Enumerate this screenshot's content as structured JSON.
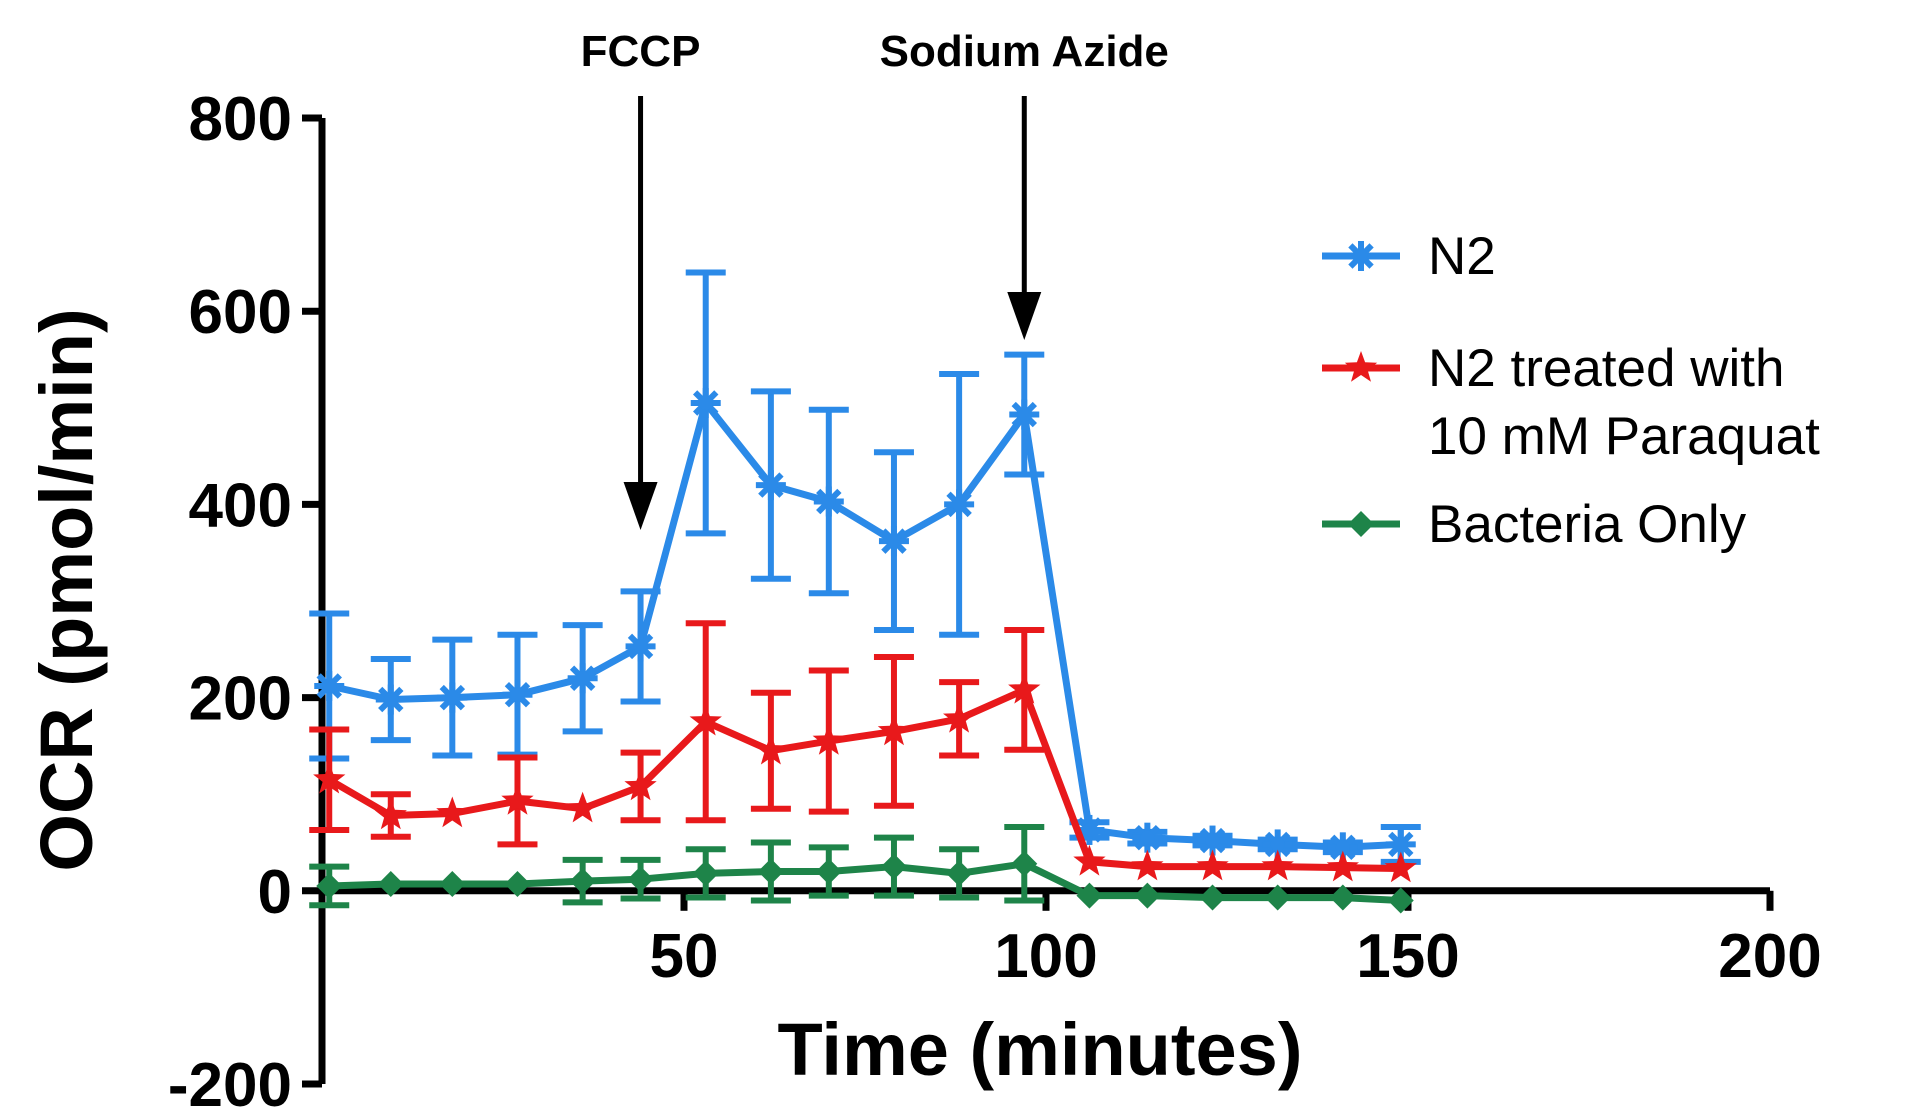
{
  "chart_data": {
    "type": "line",
    "title": "",
    "xlabel": "Time (minutes)",
    "ylabel": "OCR (pmol/min)",
    "xlim": [
      0,
      200
    ],
    "ylim": [
      -200,
      800
    ],
    "xticks": [
      50,
      100,
      150,
      200
    ],
    "xtick_labels": [
      "50",
      "100",
      "150",
      "200"
    ],
    "yticks": [
      -200,
      0,
      200,
      400,
      600,
      800
    ],
    "ytick_labels": [
      "-200",
      "0",
      "200",
      "400",
      "600",
      "800"
    ],
    "grid": false,
    "legend_position": "right",
    "annotations": [
      {
        "label": "FCCP",
        "x": 44
      },
      {
        "label": "Sodium Azide",
        "x": 97
      }
    ],
    "series": [
      {
        "name": "N2",
        "color": "#2b8ae8",
        "marker": "asterisk",
        "x": [
          1,
          9.5,
          18,
          27,
          36,
          44,
          53,
          62,
          70,
          79,
          88,
          97,
          106,
          114,
          123,
          132,
          141,
          149
        ],
        "y": [
          212,
          198,
          200,
          203,
          220,
          253,
          505,
          420,
          403,
          362,
          400,
          493,
          63,
          55,
          52,
          48,
          45,
          48
        ],
        "err": [
          75,
          42,
          60,
          62,
          55,
          57,
          135,
          97,
          95,
          92,
          135,
          62,
          8,
          6,
          5,
          5,
          5,
          18
        ]
      },
      {
        "name": "N2 treated with 10 mM Paraquat",
        "legend_lines": [
          "N2 treated with",
          "10 mM Paraquat"
        ],
        "color": "#e8191b",
        "marker": "star",
        "x": [
          1,
          9.5,
          18,
          27,
          36,
          44,
          53,
          62,
          70,
          79,
          88,
          97,
          106,
          114,
          123,
          132,
          141,
          149
        ],
        "y": [
          115,
          78,
          80,
          93,
          85,
          108,
          175,
          145,
          155,
          165,
          178,
          208,
          30,
          25,
          25,
          25,
          24,
          23
        ],
        "err": [
          52,
          22,
          0,
          45,
          0,
          35,
          102,
          60,
          73,
          77,
          38,
          62,
          0,
          0,
          0,
          0,
          0,
          0
        ]
      },
      {
        "name": "Bacteria Only",
        "color": "#1e8449",
        "marker": "diamond",
        "x": [
          1,
          9.5,
          18,
          27,
          36,
          44,
          53,
          62,
          70,
          79,
          88,
          97,
          106,
          114,
          123,
          132,
          141,
          149
        ],
        "y": [
          5,
          7,
          7,
          7,
          10,
          12,
          18,
          20,
          20,
          25,
          18,
          28,
          -5,
          -5,
          -7,
          -7,
          -7,
          -10
        ],
        "err": [
          20,
          0,
          0,
          0,
          22,
          20,
          25,
          30,
          25,
          30,
          25,
          38,
          0,
          0,
          0,
          0,
          0,
          0
        ]
      }
    ]
  }
}
